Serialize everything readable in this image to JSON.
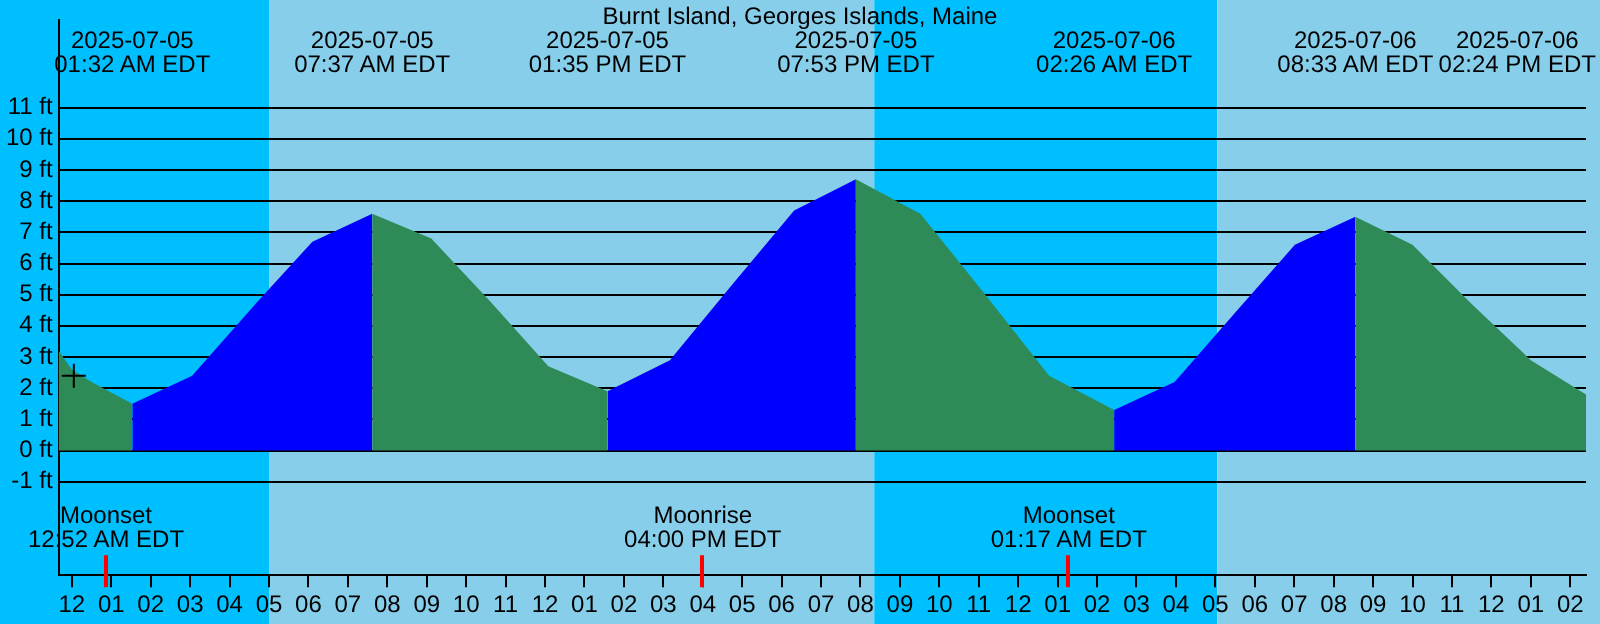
{
  "chart_data": {
    "type": "area",
    "title": "Burnt Island, Georges Islands, Maine",
    "series": [
      {
        "color": "#2e8b57",
        "x": [
          "2025-07-04T23:40",
          "2025-07-05T00:00",
          "2025-07-05T00:30",
          "2025-07-05T01:32"
        ],
        "values": [
          3.2,
          2.6,
          2.2,
          1.5
        ]
      },
      {
        "color": "#0000ff",
        "x": [
          "2025-07-05T01:32",
          "2025-07-05T03:03",
          "2025-07-05T04:35",
          "2025-07-05T06:06",
          "2025-07-05T07:37"
        ],
        "values": [
          1.5,
          2.4,
          4.6,
          6.7,
          7.6
        ]
      },
      {
        "color": "#2e8b57",
        "x": [
          "2025-07-05T07:37",
          "2025-07-05T09:07",
          "2025-07-05T10:36",
          "2025-07-05T12:05",
          "2025-07-05T13:35"
        ],
        "values": [
          7.6,
          6.8,
          4.8,
          2.7,
          1.9
        ]
      },
      {
        "color": "#0000ff",
        "x": [
          "2025-07-05T13:35",
          "2025-07-05T15:10",
          "2025-07-05T16:44",
          "2025-07-05T18:19",
          "2025-07-05T19:53"
        ],
        "values": [
          1.9,
          2.9,
          5.3,
          7.7,
          8.7
        ]
      },
      {
        "color": "#2e8b57",
        "x": [
          "2025-07-05T19:53",
          "2025-07-05T21:31",
          "2025-07-05T23:10",
          "2025-07-06T00:47",
          "2025-07-06T02:26"
        ],
        "values": [
          8.7,
          7.6,
          5.0,
          2.4,
          1.3
        ]
      },
      {
        "color": "#0000ff",
        "x": [
          "2025-07-06T02:26",
          "2025-07-06T03:58",
          "2025-07-06T05:29",
          "2025-07-06T07:01",
          "2025-07-06T08:33"
        ],
        "values": [
          1.3,
          2.2,
          4.4,
          6.6,
          7.5
        ]
      },
      {
        "color": "#2e8b57",
        "x": [
          "2025-07-06T08:33",
          "2025-07-06T10:00",
          "2025-07-06T11:30",
          "2025-07-06T13:00",
          "2025-07-06T14:24"
        ],
        "values": [
          7.5,
          6.6,
          4.7,
          2.9,
          1.8
        ]
      },
      {
        "type": "scatter",
        "color": "#000000",
        "marker": "cross",
        "x": [
          "2025-07-05T00:03"
        ],
        "values": [
          2.4
        ]
      }
    ],
    "xlim": [
      "2025-07-04T23:40",
      "2025-07-06T14:24"
    ],
    "ylim": [
      -4,
      13.8
    ],
    "xticks": [
      {
        "value": "2025-07-05T00:00",
        "label": "12"
      },
      {
        "value": "2025-07-05T01:00",
        "label": "01"
      },
      {
        "value": "2025-07-05T02:00",
        "label": "02"
      },
      {
        "value": "2025-07-05T03:00",
        "label": "03"
      },
      {
        "value": "2025-07-05T04:00",
        "label": "04"
      },
      {
        "value": "2025-07-05T05:00",
        "label": "05"
      },
      {
        "value": "2025-07-05T06:00",
        "label": "06"
      },
      {
        "value": "2025-07-05T07:00",
        "label": "07"
      },
      {
        "value": "2025-07-05T08:00",
        "label": "08"
      },
      {
        "value": "2025-07-05T09:00",
        "label": "09"
      },
      {
        "value": "2025-07-05T10:00",
        "label": "10"
      },
      {
        "value": "2025-07-05T11:00",
        "label": "11"
      },
      {
        "value": "2025-07-05T12:00",
        "label": "12"
      },
      {
        "value": "2025-07-05T13:00",
        "label": "01"
      },
      {
        "value": "2025-07-05T14:00",
        "label": "02"
      },
      {
        "value": "2025-07-05T15:00",
        "label": "03"
      },
      {
        "value": "2025-07-05T16:00",
        "label": "04"
      },
      {
        "value": "2025-07-05T17:00",
        "label": "05"
      },
      {
        "value": "2025-07-05T18:00",
        "label": "06"
      },
      {
        "value": "2025-07-05T19:00",
        "label": "07"
      },
      {
        "value": "2025-07-05T20:00",
        "label": "08"
      },
      {
        "value": "2025-07-05T21:00",
        "label": "09"
      },
      {
        "value": "2025-07-05T22:00",
        "label": "10"
      },
      {
        "value": "2025-07-05T23:00",
        "label": "11"
      },
      {
        "value": "2025-07-06T00:00",
        "label": "12"
      },
      {
        "value": "2025-07-06T01:00",
        "label": "01"
      },
      {
        "value": "2025-07-06T02:00",
        "label": "02"
      },
      {
        "value": "2025-07-06T03:00",
        "label": "03"
      },
      {
        "value": "2025-07-06T04:00",
        "label": "04"
      },
      {
        "value": "2025-07-06T05:00",
        "label": "05"
      },
      {
        "value": "2025-07-06T06:00",
        "label": "06"
      },
      {
        "value": "2025-07-06T07:00",
        "label": "07"
      },
      {
        "value": "2025-07-06T08:00",
        "label": "08"
      },
      {
        "value": "2025-07-06T09:00",
        "label": "09"
      },
      {
        "value": "2025-07-06T10:00",
        "label": "10"
      },
      {
        "value": "2025-07-06T11:00",
        "label": "11"
      },
      {
        "value": "2025-07-06T12:00",
        "label": "12"
      },
      {
        "value": "2025-07-06T13:00",
        "label": "01"
      },
      {
        "value": "2025-07-06T14:00",
        "label": "02"
      }
    ],
    "yticks": [
      {
        "value": -1,
        "label": "-1 ft"
      },
      {
        "value": 0,
        "label": "0 ft"
      },
      {
        "value": 1,
        "label": "1 ft"
      },
      {
        "value": 2,
        "label": "2 ft"
      },
      {
        "value": 3,
        "label": "3 ft"
      },
      {
        "value": 4,
        "label": "4 ft"
      },
      {
        "value": 5,
        "label": "5 ft"
      },
      {
        "value": 6,
        "label": "6 ft"
      },
      {
        "value": 7,
        "label": "7 ft"
      },
      {
        "value": 8,
        "label": "8 ft"
      },
      {
        "value": 9,
        "label": "9 ft"
      },
      {
        "value": 10,
        "label": "10 ft"
      },
      {
        "value": 11,
        "label": "11 ft"
      }
    ],
    "grid": "y",
    "legend": false,
    "bands": [
      {
        "axis": "x",
        "from": "2025-07-04T23:40",
        "to": "2025-07-05T05:00",
        "color": "#00bfff"
      },
      {
        "axis": "x",
        "from": "2025-07-05T05:00",
        "to": "2025-07-05T20:21",
        "color": "#87ceeb"
      },
      {
        "axis": "x",
        "from": "2025-07-05T20:21",
        "to": "2025-07-06T05:03",
        "color": "#00bfff"
      },
      {
        "axis": "x",
        "from": "2025-07-06T05:03",
        "to": "2025-07-06T14:24",
        "color": "#87ceeb"
      }
    ],
    "annotations": [
      "2025-07-05\n01:32 AM EDT",
      "2025-07-05\n07:37 AM EDT",
      "2025-07-05\n01:35 PM EDT",
      "2025-07-05\n07:53 PM EDT",
      "2025-07-06\n02:26 AM EDT",
      "2025-07-06\n08:33 AM EDT",
      "2025-07-06\n02:24 PM EDT"
    ],
    "ref_lines": [
      {
        "axis": "x",
        "value": "2025-07-05T00:52",
        "label": "Moonset\n12:52 AM EDT",
        "color": "#ff0000"
      },
      {
        "axis": "x",
        "value": "2025-07-05T16:00",
        "label": "Moonrise\n04:00 PM EDT",
        "color": "#ff0000"
      },
      {
        "axis": "x",
        "value": "2025-07-06T01:17",
        "label": "Moonset\n01:17 AM EDT",
        "color": "#ff0000"
      }
    ]
  }
}
